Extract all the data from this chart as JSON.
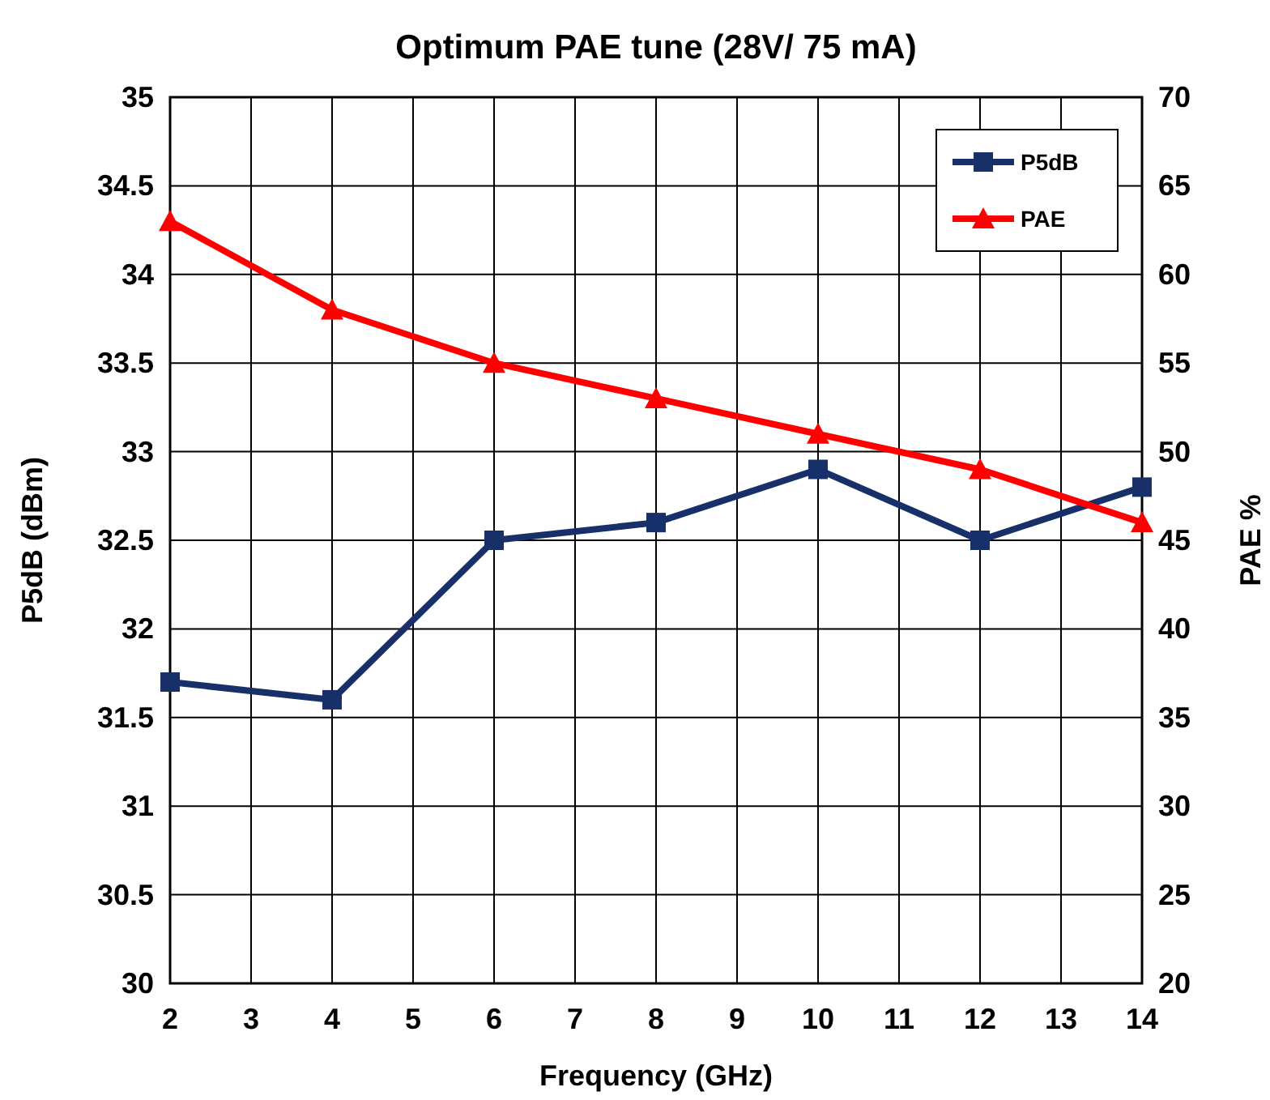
{
  "chart_data": {
    "type": "line",
    "title": "Optimum PAE tune (28V/ 75 mA)",
    "xlabel": "Frequency (GHz)",
    "ylabel": "P5dB (dBm)",
    "y2label": "PAE %",
    "x": [
      2,
      4,
      6,
      8,
      10,
      12,
      14
    ],
    "series": [
      {
        "name": "P5dB",
        "color": "#17306a",
        "marker": "square",
        "values": [
          31.7,
          31.6,
          32.5,
          32.6,
          32.9,
          32.5,
          32.8
        ]
      },
      {
        "name": "PAE",
        "color": "#ff0000",
        "marker": "triangle",
        "axis": "y2",
        "values": [
          63,
          58,
          55,
          53,
          51,
          49,
          46
        ]
      }
    ],
    "xlim": [
      2,
      14
    ],
    "xticks": [
      2,
      3,
      4,
      5,
      6,
      7,
      8,
      9,
      10,
      11,
      12,
      13,
      14
    ],
    "ylim": [
      30,
      35
    ],
    "yticks": [
      30,
      30.5,
      31,
      31.5,
      32,
      32.5,
      33,
      33.5,
      34,
      34.5,
      35
    ],
    "y2lim": [
      20,
      70
    ],
    "y2ticks": [
      20,
      25,
      30,
      35,
      40,
      45,
      50,
      55,
      60,
      65,
      70
    ],
    "grid": true,
    "legend": "top right",
    "line_style": "solid"
  }
}
